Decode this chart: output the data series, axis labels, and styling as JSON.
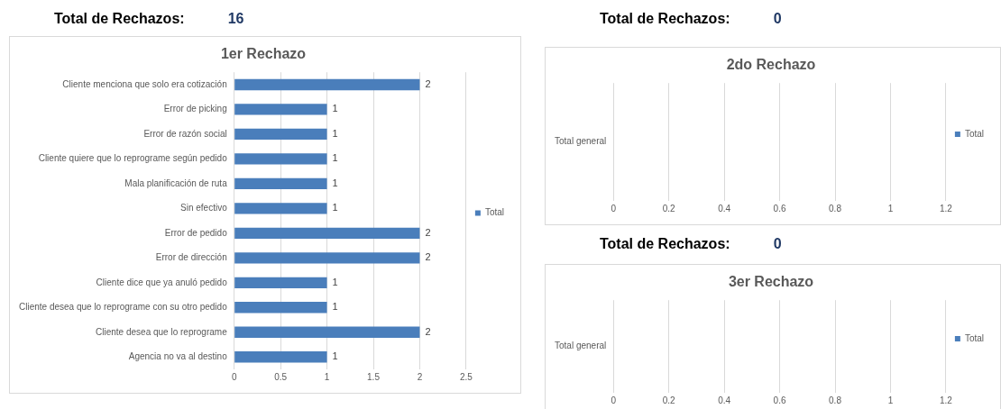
{
  "chart_data": [
    {
      "type": "bar",
      "orientation": "horizontal",
      "title": "1er Rechazo",
      "annotations": [
        "Total de Rechazos:",
        "16"
      ],
      "categories": [
        "Cliente menciona que solo era cotización",
        "Error de picking",
        "Error de razón social",
        "Cliente quiere que lo reprograme según pedido",
        "Mala planificación de ruta",
        "Sin efectivo",
        "Error de pedido",
        "Error de dirección",
        "Cliente dice que ya anuló pedido",
        "Cliente desea que lo reprograme con su otro pedido",
        "Cliente desea que lo reprograme",
        "Agencia no va al destino"
      ],
      "series": [
        {
          "name": "Total",
          "color": "#4a7ebb",
          "values": [
            2,
            1,
            1,
            1,
            1,
            1,
            2,
            2,
            1,
            1,
            2,
            1
          ]
        }
      ],
      "xlim": [
        0,
        2.5
      ],
      "xticks": [
        0,
        0.5,
        1,
        1.5,
        2,
        2.5
      ],
      "grid": "x",
      "legend": "right",
      "data_labels": true
    },
    {
      "type": "bar",
      "orientation": "horizontal",
      "title": "2do Rechazo",
      "annotations": [
        "Total de Rechazos:",
        "0"
      ],
      "categories": [
        "Total general"
      ],
      "series": [
        {
          "name": "Total",
          "color": "#4a7ebb",
          "values": [
            null
          ]
        }
      ],
      "xlim": [
        0,
        1.2
      ],
      "xticks": [
        0,
        0.2,
        0.4,
        0.6,
        0.8,
        1,
        1.2
      ],
      "grid": "x",
      "legend": "right"
    },
    {
      "type": "bar",
      "orientation": "horizontal",
      "title": "3er Rechazo",
      "annotations": [
        "Total de Rechazos:",
        "0"
      ],
      "categories": [
        "Total general"
      ],
      "series": [
        {
          "name": "Total",
          "color": "#4a7ebb",
          "values": [
            null
          ]
        }
      ],
      "xlim": [
        0,
        1.2
      ],
      "xticks": [
        0,
        0.2,
        0.4,
        0.6,
        0.8,
        1,
        1.2
      ],
      "grid": "x",
      "legend": "right"
    }
  ]
}
